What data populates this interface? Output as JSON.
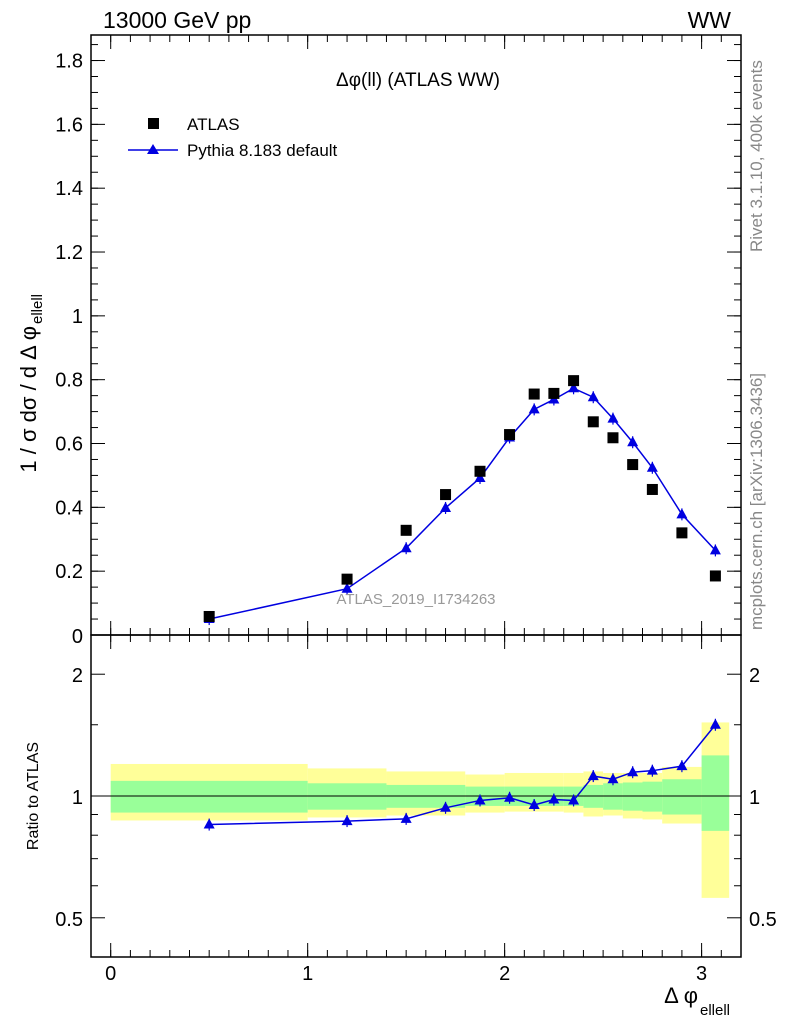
{
  "header": {
    "left": "13000 GeV pp",
    "right": "WW"
  },
  "side_labels": {
    "rivet": "Rivet 3.1.10,  400k events",
    "source": "mcplots.cern.ch [arXiv:1306.3436]"
  },
  "colors": {
    "data": "#000000",
    "mc": "#0000e0",
    "band_inner": "#99ff99",
    "band_outer": "#ffff99",
    "watermark": "#999999"
  },
  "chart_data": [
    {
      "type": "scatter",
      "title": "Δφ(ll) (ATLAS WW)",
      "ylabel": "1 / σ  dσ / d Δ φ",
      "ylabel_sub": "ellell",
      "watermark": "ATLAS_2019_I1734263",
      "xlim": [
        -0.1,
        3.2
      ],
      "ylim": [
        0,
        1.88
      ],
      "yticks": [
        0.2,
        0.4,
        0.6,
        0.8,
        1,
        1.2,
        1.4,
        1.6,
        1.8
      ],
      "ytick_labels": [
        "0.2",
        "0.4",
        "0.6",
        "0.8",
        "1",
        "1.2",
        "1.4",
        "1.6",
        "1.8"
      ],
      "bottom_tick_label": "0",
      "legend_position": "top-left",
      "series": [
        {
          "name": "ATLAS",
          "marker": "square",
          "x": [
            0.5,
            1.2,
            1.5,
            1.7,
            1.875,
            2.025,
            2.15,
            2.25,
            2.35,
            2.45,
            2.55,
            2.65,
            2.75,
            2.9,
            3.07
          ],
          "y": [
            0.058,
            0.175,
            0.328,
            0.44,
            0.513,
            0.628,
            0.755,
            0.757,
            0.797,
            0.668,
            0.618,
            0.534,
            0.456,
            0.32,
            0.185
          ]
        },
        {
          "name": "Pythia 8.183 default",
          "marker": "triangle",
          "x": [
            0.5,
            1.2,
            1.5,
            1.7,
            1.875,
            2.025,
            2.15,
            2.25,
            2.35,
            2.45,
            2.55,
            2.65,
            2.75,
            2.9,
            3.07
          ],
          "y": [
            0.05,
            0.145,
            0.272,
            0.398,
            0.492,
            0.619,
            0.707,
            0.738,
            0.773,
            0.745,
            0.678,
            0.604,
            0.524,
            0.378,
            0.265
          ]
        }
      ]
    },
    {
      "type": "line",
      "ylabel": "Ratio to ATLAS",
      "xlabel": "Δ φ",
      "xlabel_sub": "ellell",
      "xlim": [
        -0.1,
        3.2
      ],
      "ylim": [
        0.4,
        2.5
      ],
      "log_y": true,
      "xticks": [
        0,
        1,
        2,
        3
      ],
      "xtick_labels": [
        "0",
        "1",
        "2",
        "3"
      ],
      "yticks": [
        0.5,
        1,
        2
      ],
      "ytick_labels": [
        "0.5",
        "1",
        "2"
      ],
      "reference_line": 1,
      "series": [
        {
          "name": "Pythia 8.183 default",
          "x": [
            0.5,
            1.2,
            1.5,
            1.7,
            1.875,
            2.025,
            2.15,
            2.25,
            2.35,
            2.45,
            2.55,
            2.65,
            2.75,
            2.9,
            3.07
          ],
          "y": [
            0.85,
            0.867,
            0.878,
            0.935,
            0.975,
            0.99,
            0.95,
            0.98,
            0.975,
            1.12,
            1.1,
            1.145,
            1.155,
            1.185,
            1.5
          ]
        }
      ],
      "uncertainty_bands": {
        "bins": [
          [
            0,
            1
          ],
          [
            1,
            1.4
          ],
          [
            1.4,
            1.8
          ],
          [
            1.8,
            2
          ],
          [
            2,
            2.3
          ],
          [
            2.3,
            2.4
          ],
          [
            2.4,
            2.5
          ],
          [
            2.5,
            2.6
          ],
          [
            2.6,
            2.7
          ],
          [
            2.7,
            2.8
          ],
          [
            2.8,
            3
          ],
          [
            3,
            3.14
          ]
        ],
        "inner_low": [
          0.91,
          0.925,
          0.935,
          0.945,
          0.945,
          0.945,
          0.935,
          0.925,
          0.92,
          0.915,
          0.9,
          0.82
        ],
        "inner_high": [
          1.09,
          1.075,
          1.065,
          1.055,
          1.055,
          1.055,
          1.065,
          1.075,
          1.08,
          1.085,
          1.1,
          1.26
        ],
        "outer_low": [
          0.87,
          0.885,
          0.895,
          0.91,
          0.915,
          0.91,
          0.89,
          0.895,
          0.88,
          0.875,
          0.855,
          0.56
        ],
        "outer_high": [
          1.2,
          1.17,
          1.15,
          1.13,
          1.14,
          1.14,
          1.15,
          1.14,
          1.14,
          1.14,
          1.18,
          1.52
        ]
      }
    }
  ]
}
